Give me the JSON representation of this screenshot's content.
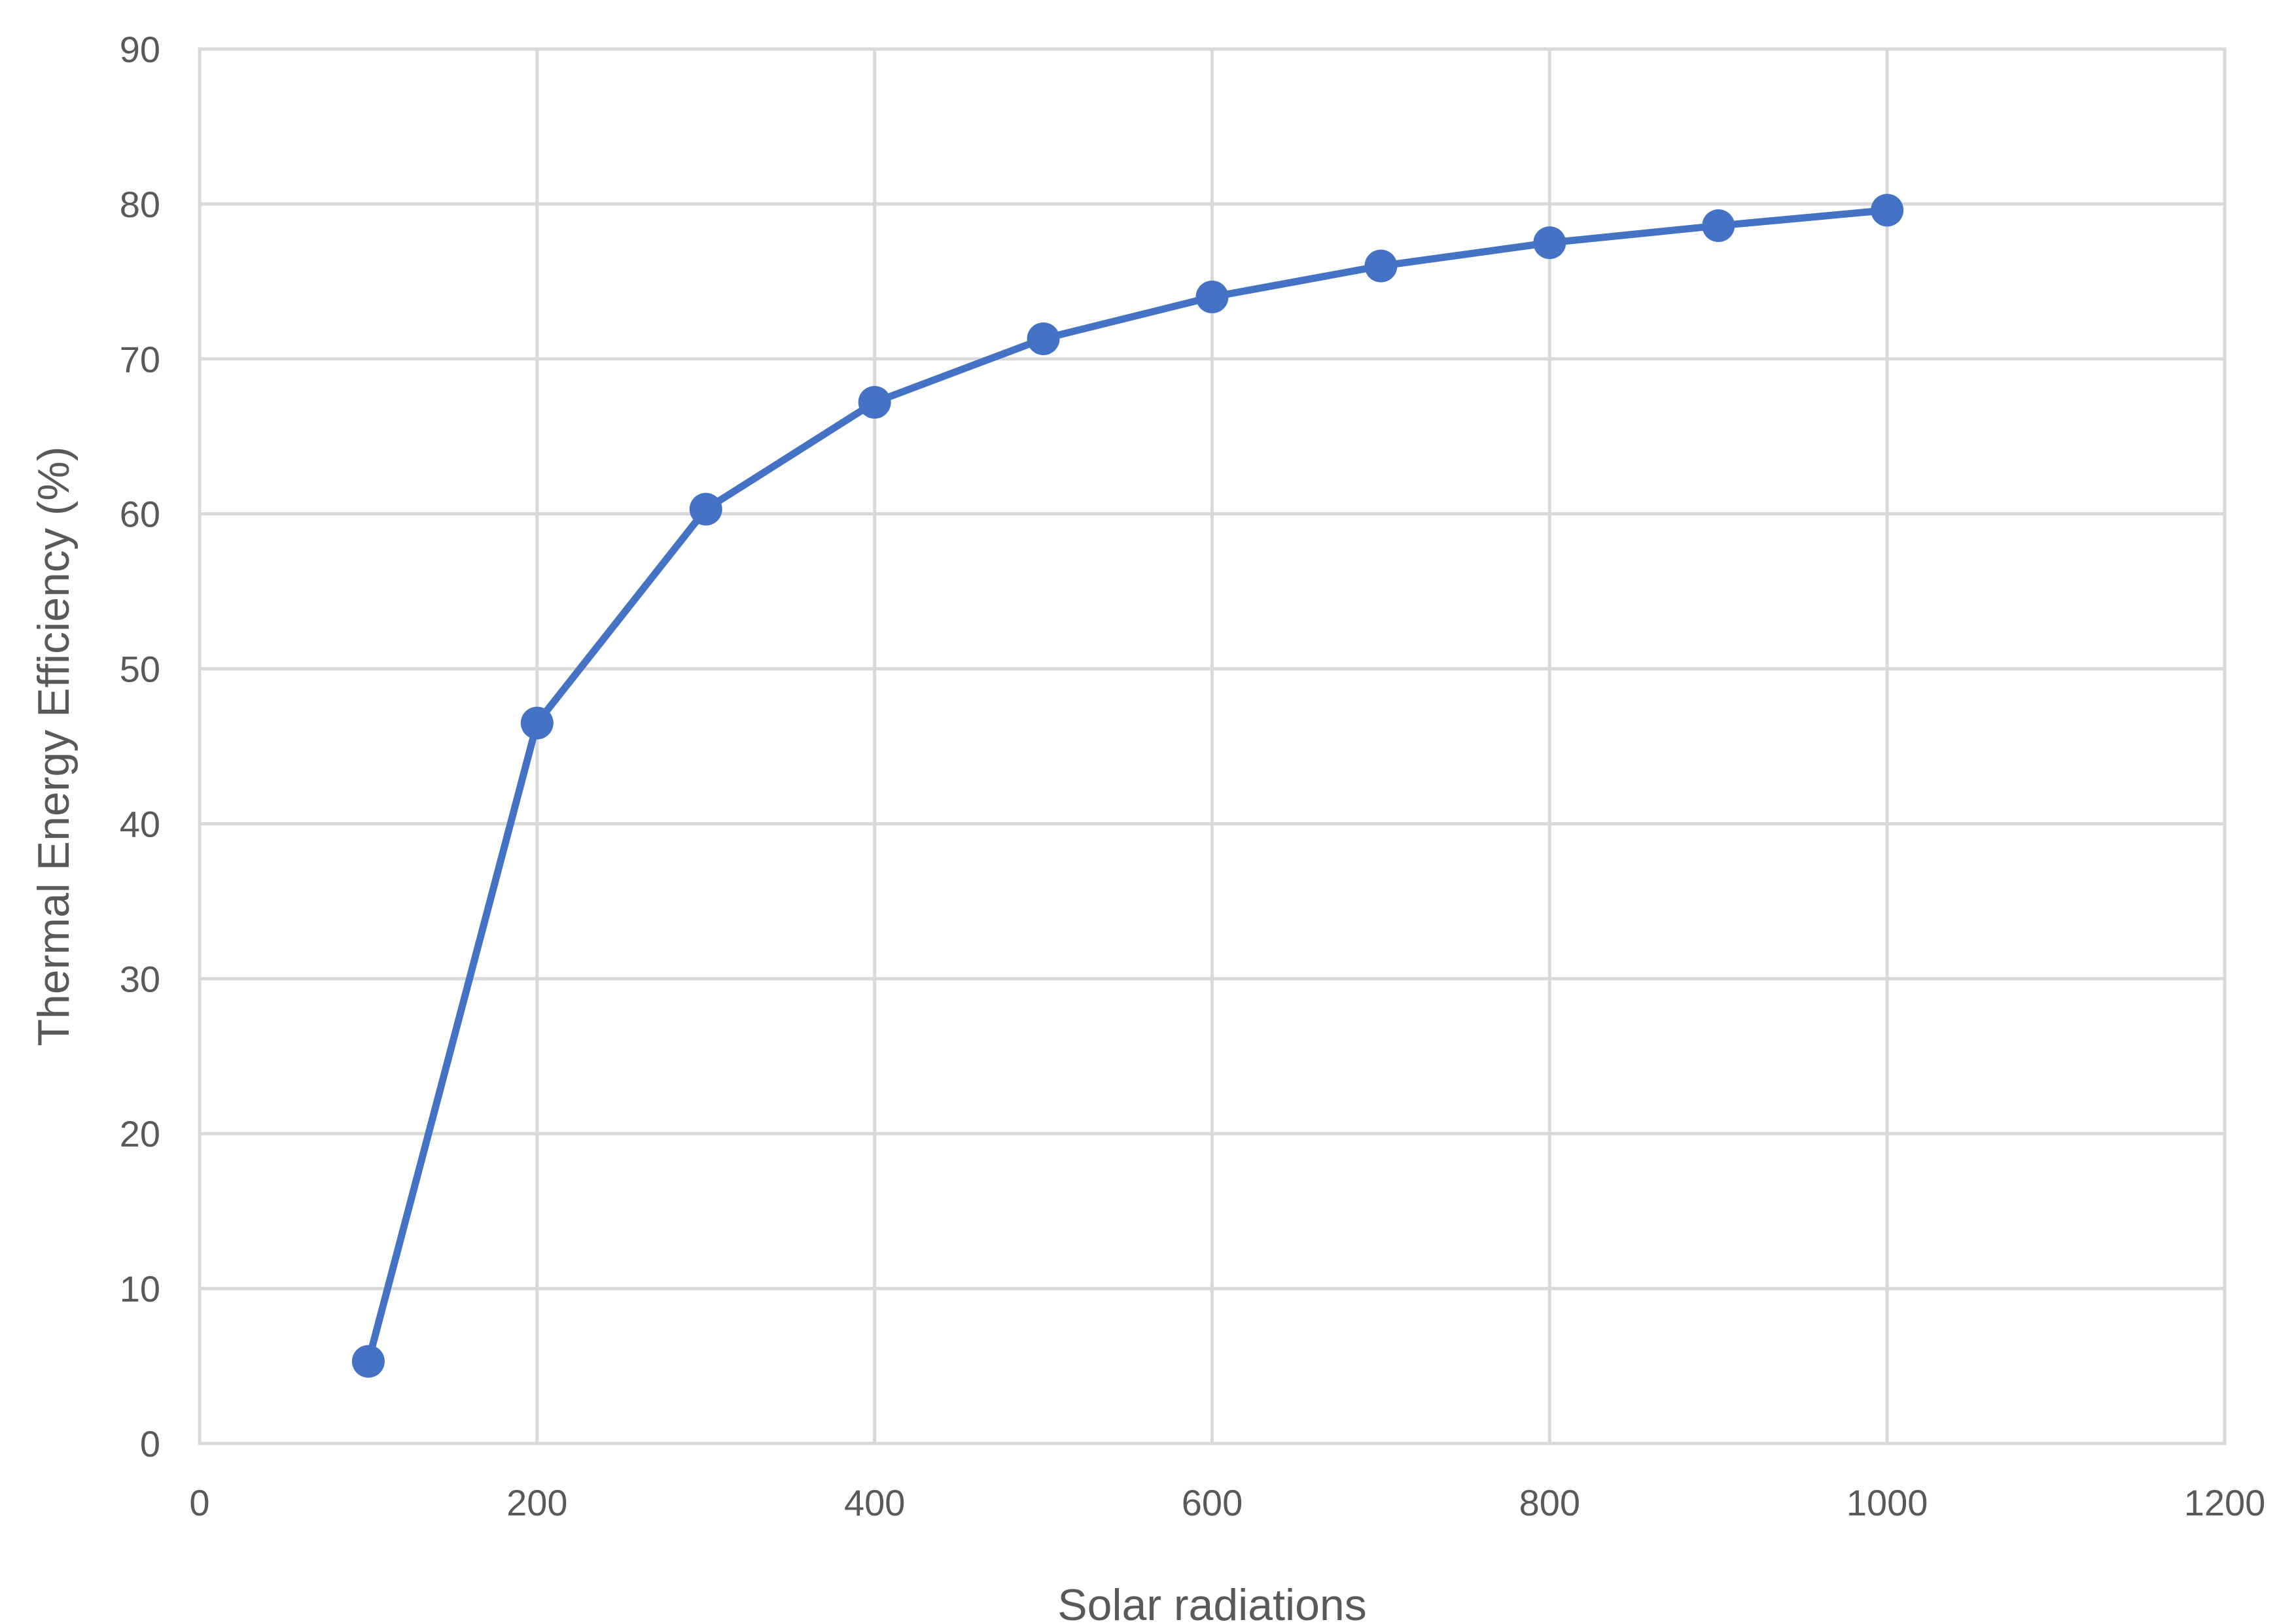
{
  "chart_data": {
    "type": "scatter",
    "title": "",
    "xlabel": "Solar radiations",
    "ylabel": "Thermal Energy Efficiency (%)",
    "xlim": [
      0,
      1200
    ],
    "ylim": [
      0,
      90
    ],
    "xticks": [
      0,
      200,
      400,
      600,
      800,
      1000,
      1200
    ],
    "yticks": [
      0,
      10,
      20,
      30,
      40,
      50,
      60,
      70,
      80,
      90
    ],
    "grid": true,
    "legend": "none",
    "series": [
      {
        "color": "#4472c4",
        "x": [
          100,
          200,
          300,
          400,
          500,
          600,
          700,
          800,
          900,
          1000
        ],
        "y": [
          5.3,
          46.5,
          60.3,
          67.2,
          71.3,
          74.0,
          76.0,
          77.5,
          78.6,
          79.6
        ]
      }
    ]
  }
}
